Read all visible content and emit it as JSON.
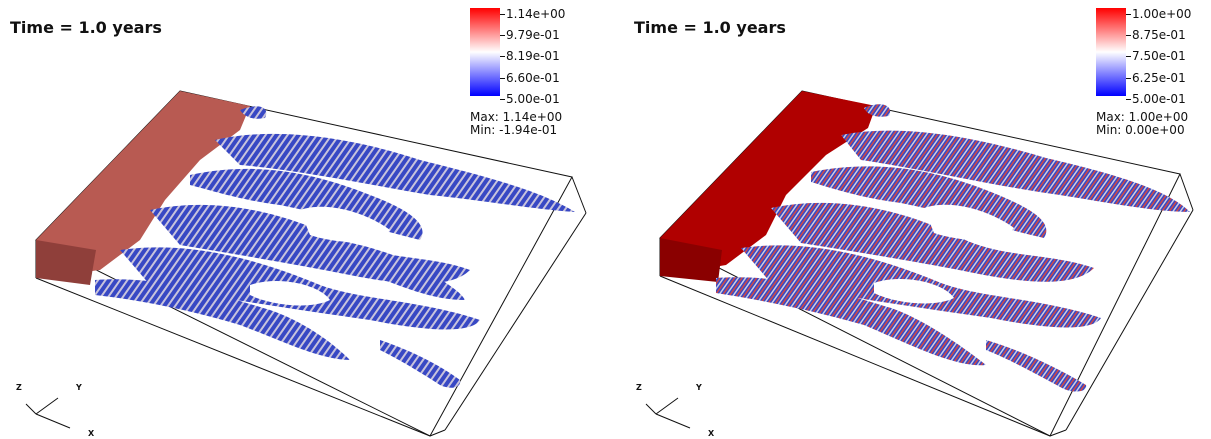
{
  "left": {
    "time_label": "Time = 1.0 years",
    "colorbar": {
      "ticks": [
        "1.14e+00",
        "9.79e-01",
        "8.19e-01",
        "6.60e-01",
        "5.00e-01"
      ],
      "max_label": "Max:  1.14e+00",
      "min_label": "Min: -1.94e-01",
      "top_color": "#ff0000",
      "mid_color": "#ffffff",
      "bottom_color": "#0000ff"
    },
    "block_color": "#b85a52",
    "axes": {
      "z": "Z",
      "y": "Y",
      "x": "X"
    }
  },
  "right": {
    "time_label": "Time = 1.0 years",
    "colorbar": {
      "ticks": [
        "1.00e+00",
        "8.75e-01",
        "7.50e-01",
        "6.25e-01",
        "5.00e-01"
      ],
      "max_label": "Max:  1.00e+00",
      "min_label": "Min:  0.00e+00",
      "top_color": "#ff0000",
      "mid_color": "#ffffff",
      "bottom_color": "#0000ff"
    },
    "block_color": "#b00000",
    "axes": {
      "z": "Z",
      "y": "Y",
      "x": "X"
    }
  },
  "colors": {
    "finger_blue": "#3a4fc8",
    "finger_light": "#c9c6df",
    "finger_red": "#d94a4a",
    "box_line": "#111111"
  }
}
